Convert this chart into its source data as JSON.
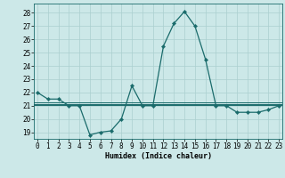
{
  "title": "",
  "xlabel": "Humidex (Indice chaleur)",
  "ylabel": "",
  "bg_color": "#cce8e8",
  "grid_color": "#aacfcf",
  "line_color": "#1a6b6b",
  "x_ticks": [
    0,
    1,
    2,
    3,
    4,
    5,
    6,
    7,
    8,
    9,
    10,
    11,
    12,
    13,
    14,
    15,
    16,
    17,
    18,
    19,
    20,
    21,
    22,
    23
  ],
  "y_ticks": [
    19,
    20,
    21,
    22,
    23,
    24,
    25,
    26,
    27,
    28
  ],
  "xlim": [
    -0.3,
    23.3
  ],
  "ylim": [
    18.5,
    28.7
  ],
  "main_series": {
    "x": [
      0,
      1,
      2,
      3,
      4,
      5,
      6,
      7,
      8,
      9,
      10,
      11,
      12,
      13,
      14,
      15,
      16,
      17,
      18,
      19,
      20,
      21,
      22,
      23
    ],
    "y": [
      22.0,
      21.5,
      21.5,
      21.0,
      21.0,
      18.8,
      19.0,
      19.1,
      20.0,
      22.5,
      21.0,
      21.0,
      25.5,
      27.2,
      28.1,
      27.0,
      24.5,
      21.0,
      21.0,
      20.5,
      20.5,
      20.5,
      20.7,
      21.0
    ]
  },
  "flat_series": [
    {
      "y": 21.05
    },
    {
      "y": 21.15
    },
    {
      "y": 21.25
    }
  ],
  "xlabel_fontsize": 6.0,
  "tick_fontsize": 5.5
}
